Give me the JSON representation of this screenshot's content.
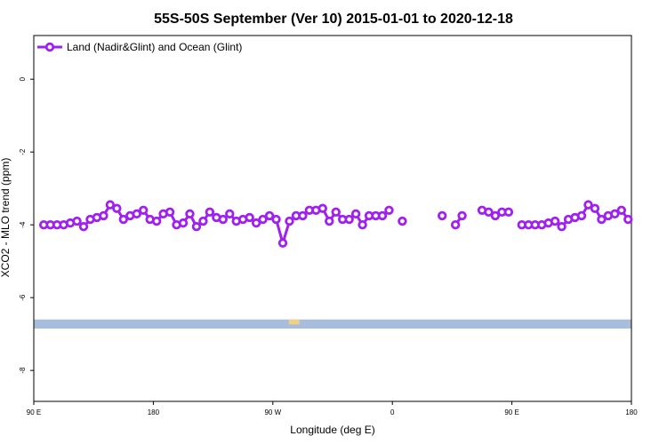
{
  "chart_data": {
    "type": "line",
    "title": "55S-50S September (Ver 10)   2015-01-01 to 2020-12-18",
    "xlabel": "Longitude (deg E)",
    "ylabel": "XCO2 - MLO trend (ppm)",
    "xlim": [
      90,
      540
    ],
    "ylim": [
      -8.85,
      1.2
    ],
    "x_ticks": [
      {
        "value": 90,
        "label": "90 E"
      },
      {
        "value": 180,
        "label": "180"
      },
      {
        "value": 270,
        "label": "90 W"
      },
      {
        "value": 360,
        "label": "0"
      },
      {
        "value": 450,
        "label": "90 E"
      },
      {
        "value": 540,
        "label": "180"
      }
    ],
    "y_ticks": [
      0,
      -2,
      -4,
      -6,
      -8
    ],
    "legend": {
      "position": "top-left"
    },
    "series": [
      {
        "name": "Land (Nadir&Glint) and Ocean (Glint)",
        "color": "#a020f0",
        "segments": [
          {
            "x": [
              97.5,
              102.5,
              107.5,
              112.5,
              117.5,
              122.5,
              127.5,
              132.5,
              137.5,
              142.5,
              147.5,
              152.5,
              157.5,
              162.5,
              167.5,
              172.5,
              177.5,
              182.5,
              187.5,
              192.5,
              197.5,
              202.5,
              207.5,
              212.5,
              217.5,
              222.5,
              227.5,
              232.5,
              237.5,
              242.5,
              247.5,
              252.5,
              257.5,
              262.5,
              267.5,
              272.5,
              277.5,
              282.5,
              287.5,
              292.5,
              297.5,
              302.5,
              307.5,
              312.5,
              317.5,
              322.5,
              327.5,
              332.5,
              337.5,
              342.5,
              347.5,
              352.5,
              357.5
            ],
            "y": [
              -4.0,
              -4.0,
              -4.0,
              -4.0,
              -3.95,
              -3.9,
              -4.05,
              -3.85,
              -3.8,
              -3.75,
              -3.45,
              -3.55,
              -3.85,
              -3.75,
              -3.7,
              -3.6,
              -3.85,
              -3.9,
              -3.7,
              -3.65,
              -4.0,
              -3.95,
              -3.7,
              -4.05,
              -3.9,
              -3.65,
              -3.8,
              -3.85,
              -3.7,
              -3.9,
              -3.85,
              -3.8,
              -3.95,
              -3.85,
              -3.75,
              -3.85,
              -4.5,
              -3.9,
              -3.75,
              -3.75,
              -3.6,
              -3.6,
              -3.55,
              -3.9,
              -3.65,
              -3.85,
              -3.85,
              -3.7,
              -4.0,
              -3.75,
              -3.75,
              -3.75,
              -3.6
            ]
          },
          {
            "x": [
              367.5
            ],
            "y": [
              -3.9
            ]
          },
          {
            "x": [
              397.5
            ],
            "y": [
              -3.75
            ]
          },
          {
            "x": [
              407.5,
              412.5
            ],
            "y": [
              -4.0,
              -3.75
            ]
          },
          {
            "x": [
              427.5,
              432.5,
              437.5,
              442.5,
              447.5
            ],
            "y": [
              -3.6,
              -3.65,
              -3.75,
              -3.65,
              -3.65
            ]
          },
          {
            "x": [
              457.5,
              462.5,
              467.5,
              472.5,
              477.5,
              482.5,
              487.5,
              492.5,
              497.5,
              502.5,
              507.5,
              512.5,
              517.5,
              522.5,
              527.5,
              532.5,
              537.5
            ],
            "y": [
              -4.0,
              -4.0,
              -4.0,
              -4.0,
              -3.95,
              -3.9,
              -4.05,
              -3.85,
              -3.8,
              -3.75,
              -3.45,
              -3.55,
              -3.85,
              -3.75,
              -3.7,
              -3.6,
              -3.85
            ]
          }
        ]
      }
    ],
    "colors": {
      "series": "#a020f0",
      "map_strip": "#a8bddb",
      "land_strip": "#f7d27a"
    },
    "map_strip": {
      "y_range": [
        -6.85,
        -6.6
      ],
      "land_x_ranges": [
        [
          282,
          290
        ]
      ]
    }
  }
}
